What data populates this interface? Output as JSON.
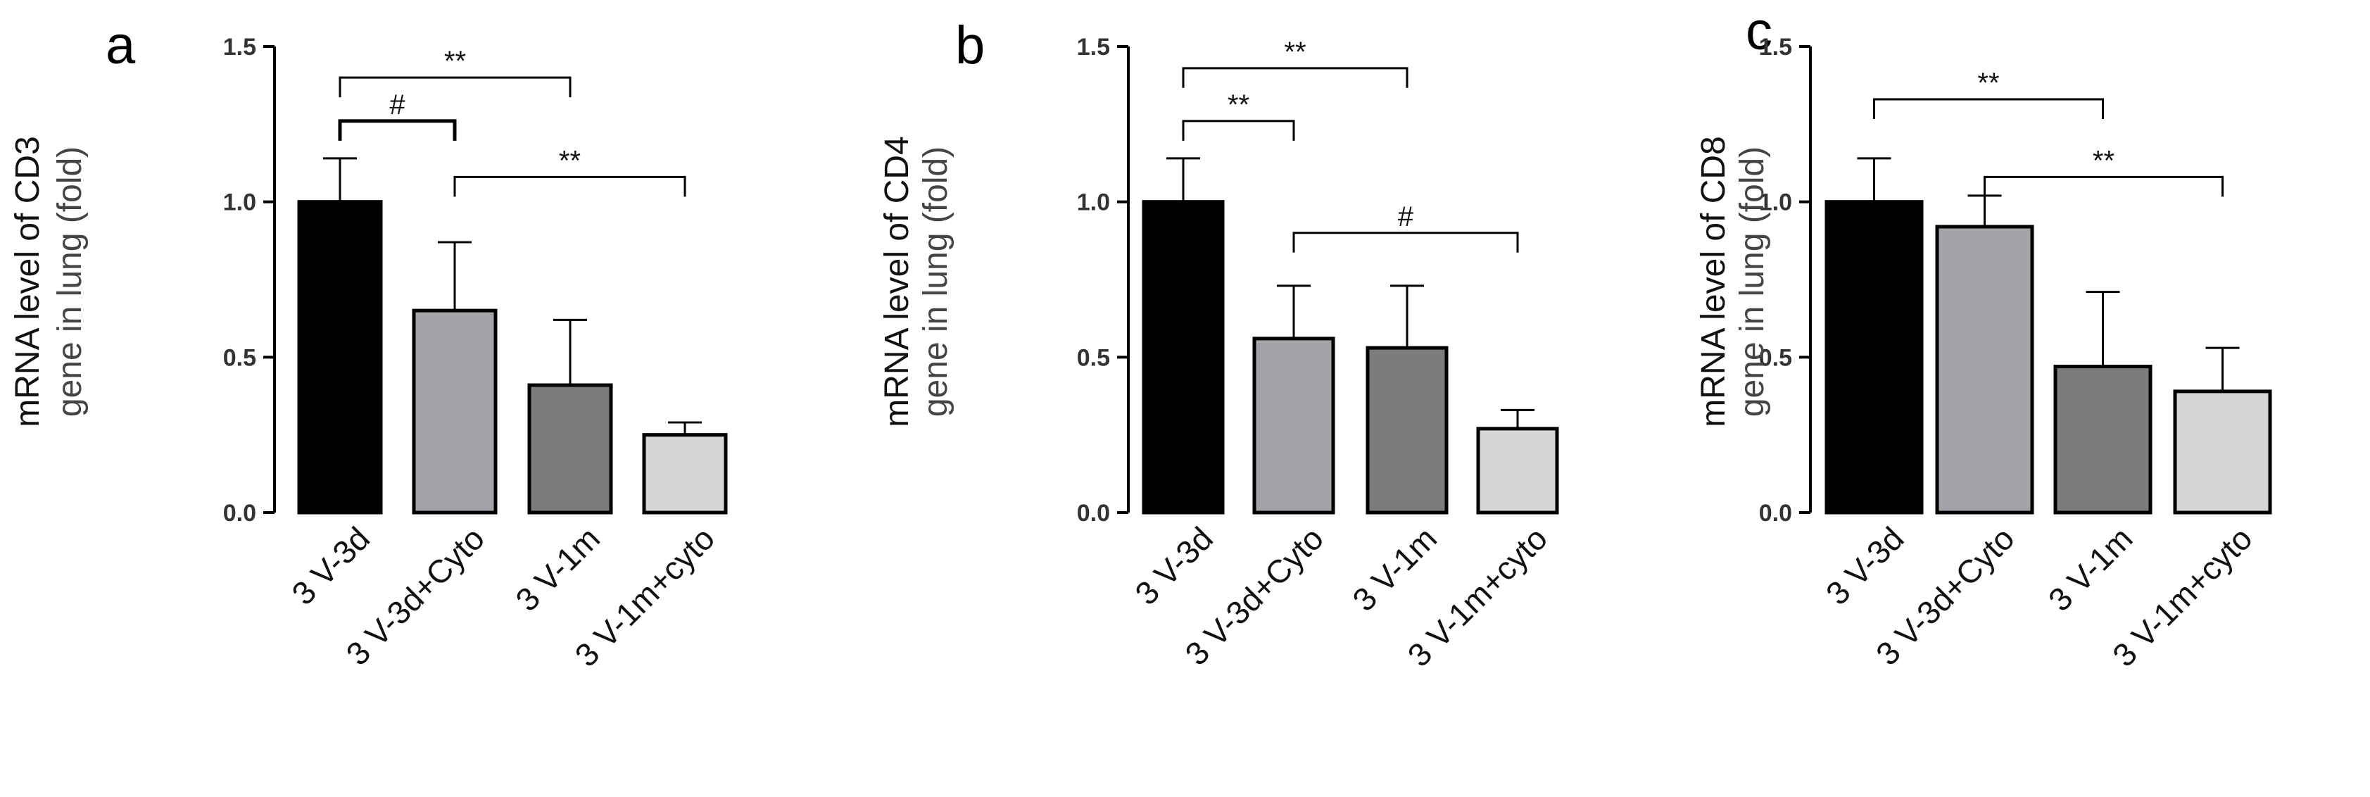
{
  "chart_data": [
    {
      "type": "bar",
      "panel_label": "a",
      "ylabel_line1": "mRNA level of CD3",
      "ylabel_line2": "gene in lung (fold)",
      "ylim": [
        0,
        1.5
      ],
      "yticks": [
        "0.0",
        "0.5",
        "1.0",
        "1.5"
      ],
      "categories": [
        "3 V-3d",
        "3 V-3d+Cyto",
        "3 V-1m",
        "3 V-1m+cyto"
      ],
      "values": [
        1.0,
        0.65,
        0.41,
        0.25
      ],
      "errors": [
        0.14,
        0.22,
        0.21,
        0.04
      ],
      "colors": [
        "#000000",
        "#a4a4a8",
        "#7c7c7c",
        "#d6d6d6"
      ],
      "significance": [
        {
          "from": 0,
          "to": 1,
          "label": "#",
          "y": 1.26
        },
        {
          "from": 0,
          "to": 2,
          "label": "**",
          "y": 1.4
        },
        {
          "from": 1,
          "to": 3,
          "label": "**",
          "y": 1.08
        }
      ]
    },
    {
      "type": "bar",
      "panel_label": "b",
      "ylabel_line1": "mRNA level of CD4",
      "ylabel_line2": "gene in lung (fold)",
      "ylim": [
        0,
        1.5
      ],
      "yticks": [
        "0.0",
        "0.5",
        "1.0",
        "1.5"
      ],
      "categories": [
        "3 V-3d",
        "3 V-3d+Cyto",
        "3 V-1m",
        "3 V-1m+cyto"
      ],
      "values": [
        1.0,
        0.56,
        0.53,
        0.27
      ],
      "errors": [
        0.14,
        0.17,
        0.2,
        0.06
      ],
      "colors": [
        "#000000",
        "#a4a4a8",
        "#7c7c7c",
        "#d6d6d6"
      ],
      "significance": [
        {
          "from": 0,
          "to": 1,
          "label": "**",
          "y": 1.26
        },
        {
          "from": 0,
          "to": 2,
          "label": "**",
          "y": 1.43
        },
        {
          "from": 1,
          "to": 3,
          "label": "#",
          "y": 0.9
        }
      ]
    },
    {
      "type": "bar",
      "panel_label": "c",
      "ylabel_line1": "mRNA level of CD8",
      "ylabel_line2": "gene in lung (fold)",
      "ylim": [
        0,
        1.5
      ],
      "yticks": [
        "0.0",
        "0.5",
        "1.0",
        "1.5"
      ],
      "categories": [
        "3 V-3d",
        "3 V-3d+Cyto",
        "3 V-1m",
        "3 V-1m+cyto"
      ],
      "values": [
        1.0,
        0.92,
        0.47,
        0.39
      ],
      "errors": [
        0.14,
        0.1,
        0.24,
        0.14
      ],
      "colors": [
        "#000000",
        "#a4a4a8",
        "#7c7c7c",
        "#d6d6d6"
      ],
      "significance": [
        {
          "from": 0,
          "to": 2,
          "label": "**",
          "y": 1.33
        },
        {
          "from": 1,
          "to": 3,
          "label": "**",
          "y": 1.08
        }
      ]
    }
  ]
}
